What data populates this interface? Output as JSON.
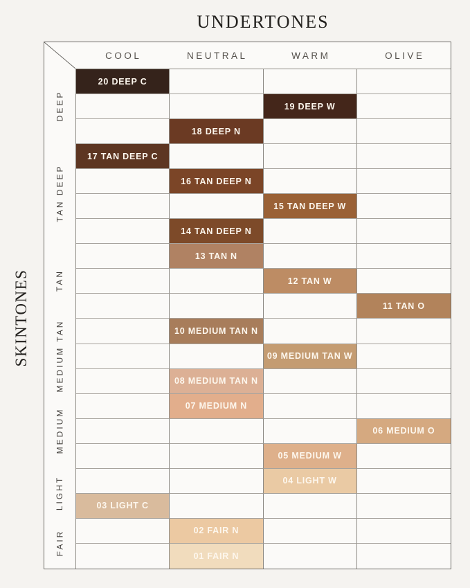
{
  "chart_data": {
    "type": "table",
    "title": "UNDERTONES",
    "ylabel": "SKINTONES",
    "legend_position": "none",
    "grid": true,
    "columns": [
      "COOL",
      "NEUTRAL",
      "WARM",
      "OLIVE"
    ],
    "groups": [
      {
        "label": "DEEP",
        "rows": 3
      },
      {
        "label": "TAN DEEP",
        "rows": 4
      },
      {
        "label": "TAN",
        "rows": 3
      },
      {
        "label": "MEDIUM TAN",
        "rows": 3
      },
      {
        "label": "MEDIUM",
        "rows": 3
      },
      {
        "label": "LIGHT",
        "rows": 2
      },
      {
        "label": "FAIR",
        "rows": 2
      }
    ],
    "shades": [
      {
        "row": 0,
        "label": "20 DEEP C",
        "group": "DEEP",
        "undertone": "COOL",
        "col": 0,
        "color": "#35231b"
      },
      {
        "row": 1,
        "label": "19 DEEP W",
        "group": "DEEP",
        "undertone": "WARM",
        "col": 2,
        "color": "#44261a"
      },
      {
        "row": 2,
        "label": "18 DEEP N",
        "group": "DEEP",
        "undertone": "NEUTRAL",
        "col": 1,
        "color": "#6b3a23"
      },
      {
        "row": 3,
        "label": "17 TAN DEEP C",
        "group": "TAN DEEP",
        "undertone": "COOL",
        "col": 0,
        "color": "#5d3622"
      },
      {
        "row": 4,
        "label": "16 TAN DEEP N",
        "group": "TAN DEEP",
        "undertone": "NEUTRAL",
        "col": 1,
        "color": "#7b4527"
      },
      {
        "row": 5,
        "label": "15 TAN DEEP W",
        "group": "TAN DEEP",
        "undertone": "WARM",
        "col": 2,
        "color": "#9a6136"
      },
      {
        "row": 6,
        "label": "14 TAN DEEP N",
        "group": "TAN DEEP",
        "undertone": "NEUTRAL",
        "col": 1,
        "color": "#7d4a29"
      },
      {
        "row": 7,
        "label": "13 TAN N",
        "group": "TAN",
        "undertone": "NEUTRAL",
        "col": 1,
        "color": "#b08263"
      },
      {
        "row": 8,
        "label": "12 TAN W",
        "group": "TAN",
        "undertone": "WARM",
        "col": 2,
        "color": "#bd8c64"
      },
      {
        "row": 9,
        "label": "11 TAN O",
        "group": "TAN",
        "undertone": "OLIVE",
        "col": 3,
        "color": "#b2835b"
      },
      {
        "row": 10,
        "label": "10 MEDIUM TAN N",
        "group": "MEDIUM TAN",
        "undertone": "NEUTRAL",
        "col": 1,
        "color": "#a87d5b"
      },
      {
        "row": 11,
        "label": "09 MEDIUM TAN W",
        "group": "MEDIUM TAN",
        "undertone": "WARM",
        "col": 2,
        "color": "#c49c72"
      },
      {
        "row": 12,
        "label": "08 MEDIUM TAN N",
        "group": "MEDIUM TAN",
        "undertone": "NEUTRAL",
        "col": 1,
        "color": "#dcb095"
      },
      {
        "row": 13,
        "label": "07 MEDIUM N",
        "group": "MEDIUM",
        "undertone": "NEUTRAL",
        "col": 1,
        "color": "#e2ae8c"
      },
      {
        "row": 14,
        "label": "06 MEDIUM O",
        "group": "MEDIUM",
        "undertone": "OLIVE",
        "col": 3,
        "color": "#d5a980"
      },
      {
        "row": 15,
        "label": "05 MEDIUM W",
        "group": "MEDIUM",
        "undertone": "WARM",
        "col": 2,
        "color": "#deb08b"
      },
      {
        "row": 16,
        "label": "04 LIGHT W",
        "group": "LIGHT",
        "undertone": "WARM",
        "col": 2,
        "color": "#eacaa4"
      },
      {
        "row": 17,
        "label": "03 LIGHT C",
        "group": "LIGHT",
        "undertone": "COOL",
        "col": 0,
        "color": "#d9bb9d"
      },
      {
        "row": 18,
        "label": "02 FAIR N",
        "group": "FAIR",
        "undertone": "NEUTRAL",
        "col": 1,
        "color": "#ecc9a2"
      },
      {
        "row": 19,
        "label": "01 FAIR N",
        "group": "FAIR",
        "undertone": "NEUTRAL",
        "col": 1,
        "color": "#f1dcbd"
      }
    ],
    "colors": {
      "swatch_label": "#fdf7ee",
      "title_text": "#23211e",
      "header_text": "#55514c",
      "group_label_text": "#45423e"
    }
  }
}
